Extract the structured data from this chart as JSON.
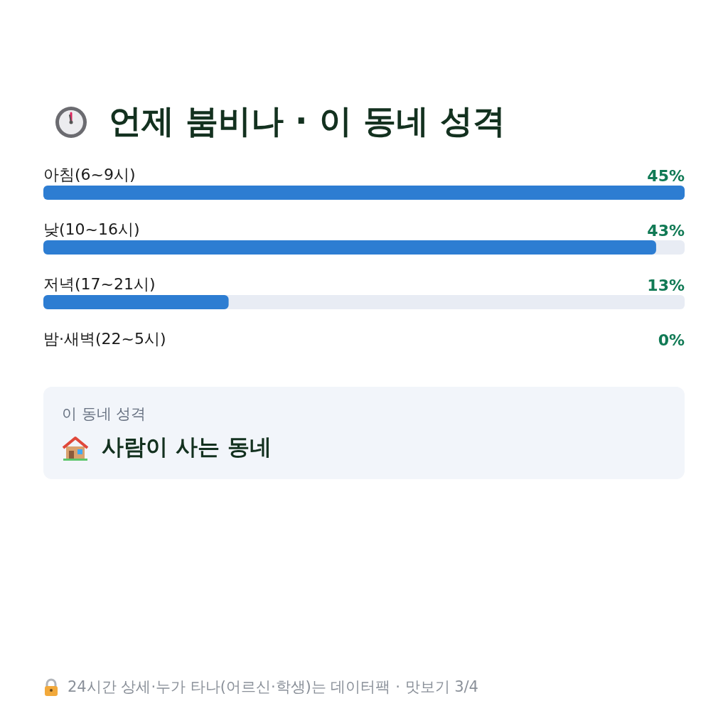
{
  "chart_data": {
    "type": "bar",
    "orientation": "horizontal",
    "title": "언제 붐비나 · 이 동네 성격",
    "categories": [
      "아침(6~9시)",
      "낮(10~16시)",
      "저녁(17~21시)",
      "밤·새벽(22~5시)"
    ],
    "values": [
      45,
      43,
      13,
      0
    ],
    "color": "#2d7dd2",
    "value_labels": [
      "45%",
      "43%",
      "13%",
      "0%"
    ],
    "xlim": [
      0,
      45
    ],
    "tick_labels": "y",
    "annotations": [
      "이 동네 성격",
      "사람이 사는 동네",
      "24시간 상세·누가 타나(어르신·학생)는 데이터팩 · 맛보기 3/4"
    ]
  }
}
